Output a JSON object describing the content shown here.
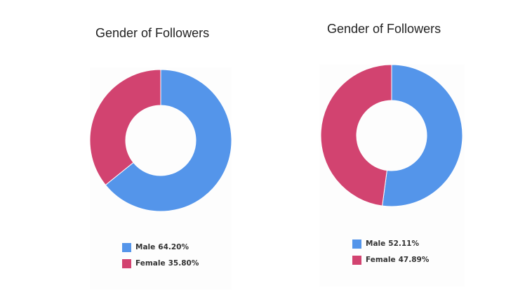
{
  "colors": {
    "male": "#5495ea",
    "female": "#d24370"
  },
  "chart_data": [
    {
      "type": "pie",
      "title": "Gender of Followers",
      "categories": [
        "Male",
        "Female"
      ],
      "values": [
        64.2,
        35.8
      ],
      "labels": [
        "64.20%",
        "35.80%"
      ],
      "donut": true,
      "legend": "bottom"
    },
    {
      "type": "pie",
      "title": "Gender of Followers",
      "categories": [
        "Male",
        "Female"
      ],
      "values": [
        52.11,
        47.89
      ],
      "labels": [
        "52.11%",
        "47.89%"
      ],
      "donut": true,
      "legend": "bottom"
    }
  ]
}
